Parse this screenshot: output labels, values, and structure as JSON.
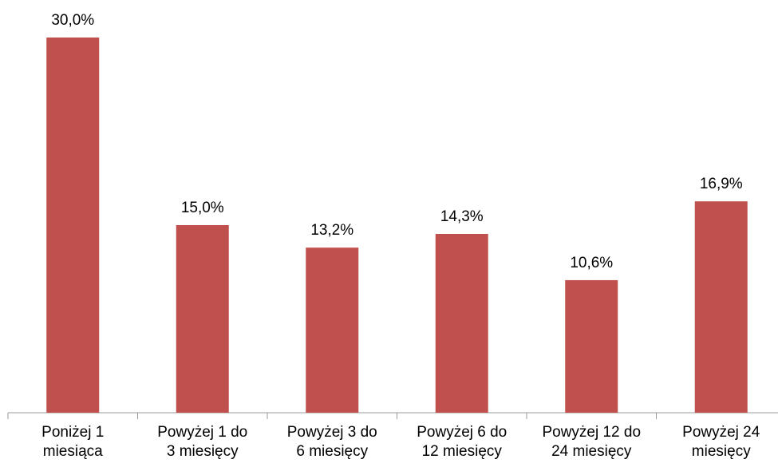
{
  "chart_data": {
    "type": "bar",
    "categories": [
      "Poniżej 1\nmiesiąca",
      "Powyżej 1 do\n3 miesięcy",
      "Powyżej 3 do\n6 miesięcy",
      "Powyżej 6 do\n12 miesięcy",
      "Powyżej 12 do\n24 miesięcy",
      "Powyżej 24\nmiesięcy"
    ],
    "values": [
      30.0,
      15.0,
      13.2,
      14.3,
      10.6,
      16.9
    ],
    "value_labels": [
      "30,0%",
      "15,0%",
      "13,2%",
      "14,3%",
      "10,6%",
      "16,9%"
    ],
    "color": "#c0504d",
    "ylim": [
      0,
      33
    ]
  }
}
